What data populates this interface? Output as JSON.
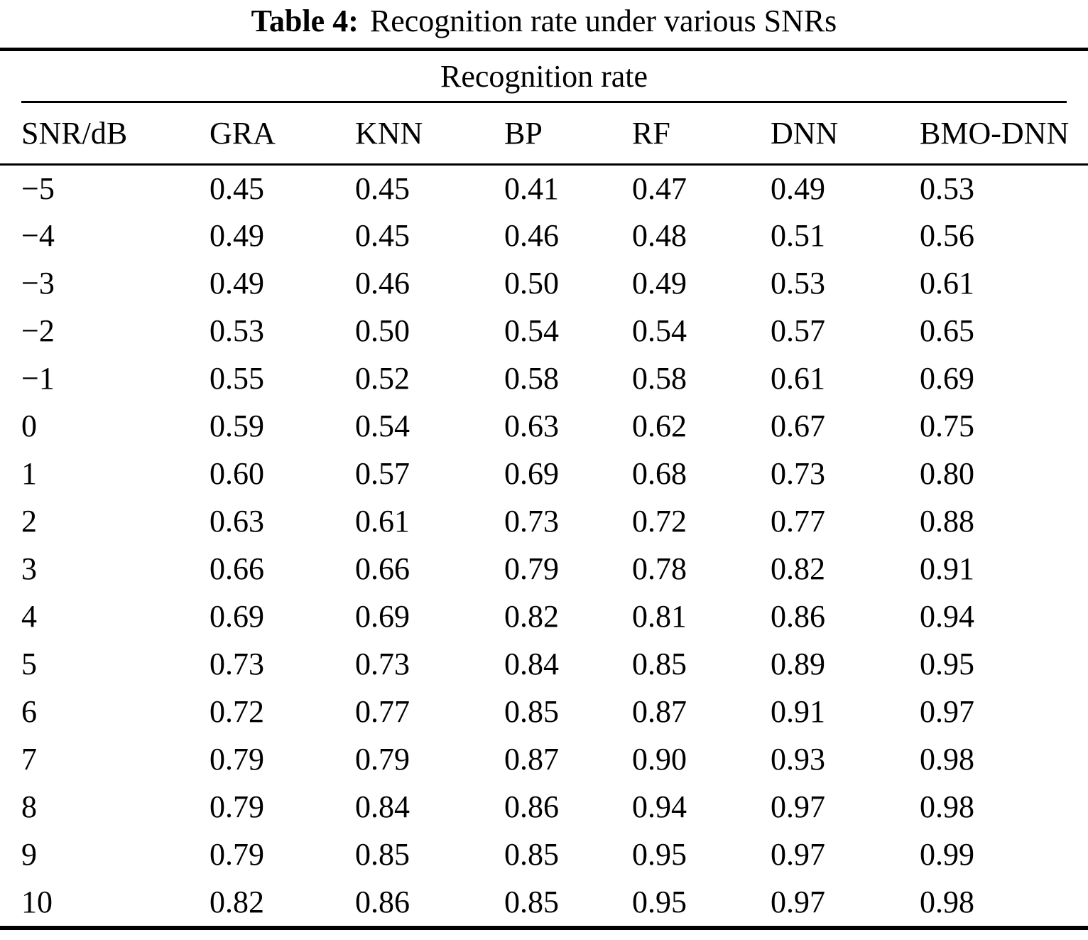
{
  "title": {
    "label": "Table 4:",
    "text": "Recognition rate under various SNRs"
  },
  "table": {
    "spanner": "Recognition rate",
    "columns": [
      "SNR/dB",
      "GRA",
      "KNN",
      "BP",
      "RF",
      "DNN",
      "BMO-DNN"
    ],
    "rows": [
      {
        "snr": "−5",
        "values": [
          "0.45",
          "0.45",
          "0.41",
          "0.47",
          "0.49",
          "0.53"
        ]
      },
      {
        "snr": "−4",
        "values": [
          "0.49",
          "0.45",
          "0.46",
          "0.48",
          "0.51",
          "0.56"
        ]
      },
      {
        "snr": "−3",
        "values": [
          "0.49",
          "0.46",
          "0.50",
          "0.49",
          "0.53",
          "0.61"
        ]
      },
      {
        "snr": "−2",
        "values": [
          "0.53",
          "0.50",
          "0.54",
          "0.54",
          "0.57",
          "0.65"
        ]
      },
      {
        "snr": "−1",
        "values": [
          "0.55",
          "0.52",
          "0.58",
          "0.58",
          "0.61",
          "0.69"
        ]
      },
      {
        "snr": "0",
        "values": [
          "0.59",
          "0.54",
          "0.63",
          "0.62",
          "0.67",
          "0.75"
        ]
      },
      {
        "snr": "1",
        "values": [
          "0.60",
          "0.57",
          "0.69",
          "0.68",
          "0.73",
          "0.80"
        ]
      },
      {
        "snr": "2",
        "values": [
          "0.63",
          "0.61",
          "0.73",
          "0.72",
          "0.77",
          "0.88"
        ]
      },
      {
        "snr": "3",
        "values": [
          "0.66",
          "0.66",
          "0.79",
          "0.78",
          "0.82",
          "0.91"
        ]
      },
      {
        "snr": "4",
        "values": [
          "0.69",
          "0.69",
          "0.82",
          "0.81",
          "0.86",
          "0.94"
        ]
      },
      {
        "snr": "5",
        "values": [
          "0.73",
          "0.73",
          "0.84",
          "0.85",
          "0.89",
          "0.95"
        ]
      },
      {
        "snr": "6",
        "values": [
          "0.72",
          "0.77",
          "0.85",
          "0.87",
          "0.91",
          "0.97"
        ]
      },
      {
        "snr": "7",
        "values": [
          "0.79",
          "0.79",
          "0.87",
          "0.90",
          "0.93",
          "0.98"
        ]
      },
      {
        "snr": "8",
        "values": [
          "0.79",
          "0.84",
          "0.86",
          "0.94",
          "0.97",
          "0.98"
        ]
      },
      {
        "snr": "9",
        "values": [
          "0.79",
          "0.85",
          "0.85",
          "0.95",
          "0.97",
          "0.99"
        ]
      },
      {
        "snr": "10",
        "values": [
          "0.82",
          "0.86",
          "0.85",
          "0.95",
          "0.97",
          "0.98"
        ]
      }
    ]
  },
  "colors": {
    "text": "#000000",
    "background": "#ffffff",
    "rule": "#000000"
  }
}
